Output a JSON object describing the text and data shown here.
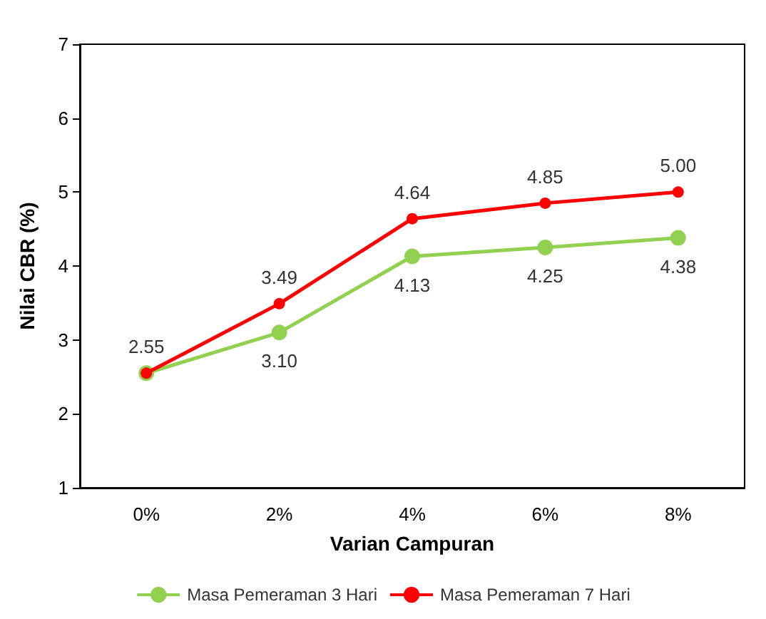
{
  "chart_data": {
    "type": "line",
    "xlabel": "Varian Campuran",
    "ylabel": "Nilai CBR (%)",
    "categories": [
      "0%",
      "2%",
      "4%",
      "6%",
      "8%"
    ],
    "series": [
      {
        "name": "Masa Pemeraman 3 Hari",
        "color": "#92d050",
        "values": [
          2.55,
          3.1,
          4.13,
          4.25,
          4.38
        ],
        "value_labels": [
          null,
          "3.10",
          "4.13",
          "4.25",
          "4.38"
        ]
      },
      {
        "name": "Masa Pemeraman 7 Hari",
        "color": "#ff0000",
        "values": [
          2.55,
          3.49,
          4.64,
          4.85,
          5.0
        ],
        "value_labels": [
          "2.55",
          "3.49",
          "4.64",
          "4.85",
          "5.00"
        ]
      }
    ],
    "ylim": [
      1,
      7
    ],
    "yticks": [
      1,
      2,
      3,
      4,
      5,
      6,
      7
    ],
    "grid": false,
    "legend": "bottom",
    "marker": "circle",
    "line_style": "solid"
  }
}
